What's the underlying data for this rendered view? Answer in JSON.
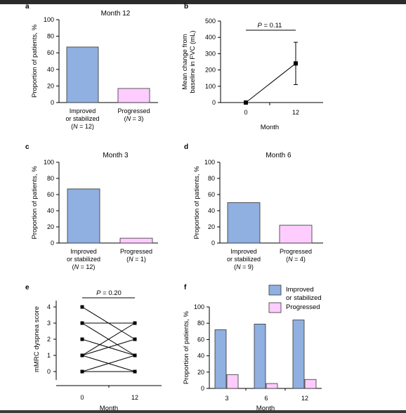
{
  "colors": {
    "improved": "#8fb0e0",
    "progressed": "#ffccff",
    "improved_stroke": "#333333",
    "progressed_stroke": "#333333"
  },
  "chart_data": [
    {
      "id": "a",
      "panel_letter": "a",
      "type": "bar",
      "title": "Month 12",
      "ylabel": "Proportion of patients, %",
      "ylim": [
        0,
        100
      ],
      "yticks": [
        "0",
        "20",
        "40",
        "60",
        "80",
        "100"
      ],
      "categories": [
        {
          "line1": "Improved",
          "line2": "or stabilized",
          "n_prefix": "(",
          "n": "N",
          "n_value": " = 12)"
        },
        {
          "line1": "Progressed",
          "line2": "",
          "n_prefix": "(",
          "n": "N",
          "n_value": " = 3)"
        }
      ],
      "values": [
        67,
        17
      ],
      "series_colors": [
        "improved",
        "progressed"
      ]
    },
    {
      "id": "b",
      "panel_letter": "b",
      "type": "line",
      "ylabel_line1": "Mean change  from",
      "ylabel_line2": "baseline in FVC (mL)",
      "xlabel": "Month",
      "x": [
        "0",
        "12"
      ],
      "y": [
        0,
        240
      ],
      "error_low": [
        0,
        110
      ],
      "error_high": [
        0,
        370
      ],
      "ylim": [
        0,
        500
      ],
      "yticks": [
        "0",
        "100",
        "200",
        "300",
        "400",
        "500"
      ],
      "annotation": {
        "p_label": "P",
        "p_value": " = 0.11"
      }
    },
    {
      "id": "c",
      "panel_letter": "c",
      "type": "bar",
      "title": "Month 3",
      "ylabel": "Proportion of patients, %",
      "ylim": [
        0,
        100
      ],
      "yticks": [
        "0",
        "20",
        "40",
        "60",
        "80",
        "100"
      ],
      "categories": [
        {
          "line1": "Improved",
          "line2": "or stabilized",
          "n_prefix": "(",
          "n": "N",
          "n_value": " = 12)"
        },
        {
          "line1": "Progressed",
          "line2": "",
          "n_prefix": "(",
          "n": "N",
          "n_value": " = 1)"
        }
      ],
      "values": [
        67,
        6
      ],
      "series_colors": [
        "improved",
        "progressed"
      ]
    },
    {
      "id": "d",
      "panel_letter": "d",
      "type": "bar",
      "title": "Month 6",
      "ylabel": "Proportion of patients, %",
      "ylim": [
        0,
        100
      ],
      "yticks": [
        "0",
        "20",
        "40",
        "60",
        "80",
        "100"
      ],
      "categories": [
        {
          "line1": "Improved",
          "line2": "or stabilized",
          "n_prefix": "(",
          "n": "N",
          "n_value": " = 9)"
        },
        {
          "line1": "Progressed",
          "line2": "",
          "n_prefix": "(",
          "n": "N",
          "n_value": " = 4)"
        }
      ],
      "values": [
        50,
        22
      ],
      "series_colors": [
        "improved",
        "progressed"
      ]
    },
    {
      "id": "e",
      "panel_letter": "e",
      "type": "line",
      "ylabel": "mMRC dyspnea score",
      "xlabel": "Month",
      "x": [
        "0",
        "12"
      ],
      "ylim": [
        0,
        4
      ],
      "yticks": [
        "0",
        "1",
        "2",
        "3",
        "4"
      ],
      "annotation": {
        "p_label": "P",
        "p_value": " = 0.20"
      },
      "patients": [
        {
          "from": 4,
          "to": 2
        },
        {
          "from": 3,
          "to": 3
        },
        {
          "from": 3,
          "to": 1
        },
        {
          "from": 2,
          "to": 1
        },
        {
          "from": 1,
          "to": 3
        },
        {
          "from": 1,
          "to": 0
        },
        {
          "from": 1,
          "to": 2
        },
        {
          "from": 0,
          "to": 1
        },
        {
          "from": 0,
          "to": 0
        }
      ]
    },
    {
      "id": "f",
      "panel_letter": "f",
      "type": "bar",
      "ylabel": "Proportion of patients, %",
      "xlabel": "Month",
      "categories": [
        "3",
        "6",
        "12"
      ],
      "ylim": [
        0,
        100
      ],
      "yticks": [
        "0",
        "20",
        "40",
        "60",
        "80",
        "100"
      ],
      "series": [
        {
          "name_line1": "Improved",
          "name_line2": "or stabilized",
          "color": "improved",
          "values": [
            72,
            79,
            84
          ]
        },
        {
          "name_line1": "Progressed",
          "name_line2": "",
          "color": "progressed",
          "values": [
            17,
            6,
            11
          ]
        }
      ],
      "legend": "top-right"
    }
  ]
}
